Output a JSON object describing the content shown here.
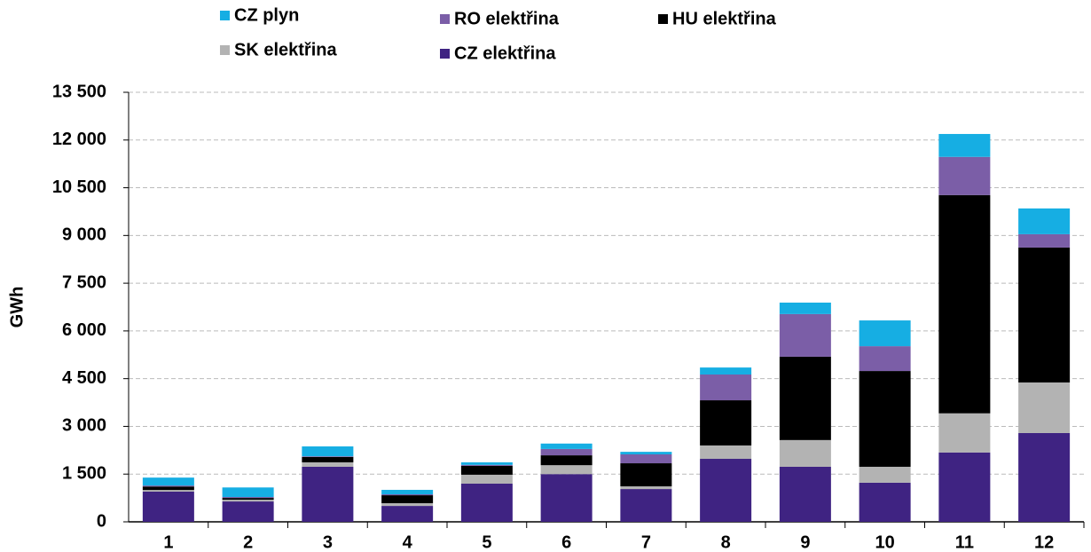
{
  "chart_data": {
    "type": "stacked_bar",
    "y_label": "GWh",
    "categories": [
      "1",
      "2",
      "3",
      "4",
      "5",
      "6",
      "7",
      "8",
      "9",
      "10",
      "11",
      "12"
    ],
    "series": [
      {
        "name": "CZ elektřina",
        "color": "#3f2382",
        "values": [
          950,
          640,
          1730,
          500,
          1200,
          1500,
          1030,
          1980,
          1730,
          1230,
          2180,
          2790
        ]
      },
      {
        "name": "SK elektřina",
        "color": "#b3b3b3",
        "values": [
          50,
          55,
          140,
          85,
          280,
          280,
          85,
          420,
          840,
          500,
          1230,
          1590
        ]
      },
      {
        "name": "HU elektřina",
        "color": "#000000",
        "values": [
          110,
          55,
          170,
          250,
          280,
          310,
          725,
          1420,
          2620,
          3010,
          6860,
          4240
        ]
      },
      {
        "name": "RO elektřina",
        "color": "#7b5ea7",
        "values": [
          30,
          30,
          20,
          30,
          30,
          200,
          280,
          810,
          1340,
          780,
          1200,
          420
        ]
      },
      {
        "name": "CZ plyn",
        "color": "#16aee3",
        "values": [
          250,
          300,
          310,
          140,
          80,
          170,
          80,
          220,
          360,
          810,
          720,
          810
        ]
      }
    ],
    "ylim": [
      0,
      13500
    ],
    "yticks": [
      0,
      {
        "value": 1500,
        "label": "1 500"
      },
      {
        "value": 3000,
        "label": "3 000"
      },
      {
        "value": 4500,
        "label": "4 500"
      },
      {
        "value": 6000,
        "label": "6 000"
      },
      {
        "value": 7500,
        "label": "7 500"
      },
      {
        "value": 9000,
        "label": "9 000"
      },
      {
        "value": 10500,
        "label": "10 500"
      },
      {
        "value": 12000,
        "label": "12 000"
      },
      {
        "value": 13500,
        "label": "13 500"
      }
    ],
    "grid": true
  }
}
